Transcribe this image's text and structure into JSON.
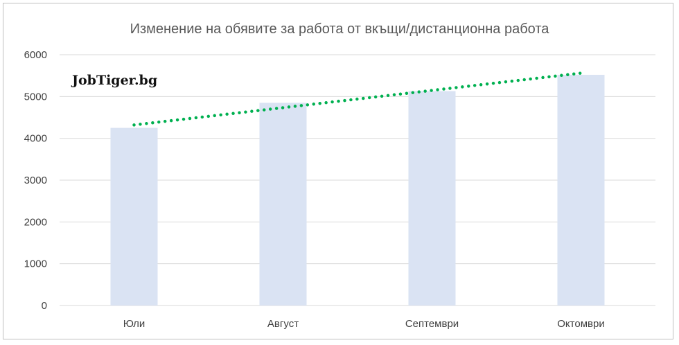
{
  "chart_data": {
    "type": "bar",
    "title": "Изменение на обявите за работа от вкъщи/дистанционна работа",
    "categories": [
      "Юли",
      "Август",
      "Септември",
      "Октомври"
    ],
    "values": [
      4250,
      4850,
      5130,
      5520
    ],
    "ylim": [
      0,
      6000
    ],
    "yticks": [
      0,
      1000,
      2000,
      3000,
      4000,
      5000,
      6000
    ],
    "grid": true,
    "trendline": {
      "type": "linear",
      "style": "dotted",
      "start": 4320,
      "end": 5560
    },
    "colors": {
      "bar": "#dae3f3",
      "trendline": "#00b050",
      "grid": "#d9d9d9"
    }
  },
  "watermark": "JobTiger.bg"
}
